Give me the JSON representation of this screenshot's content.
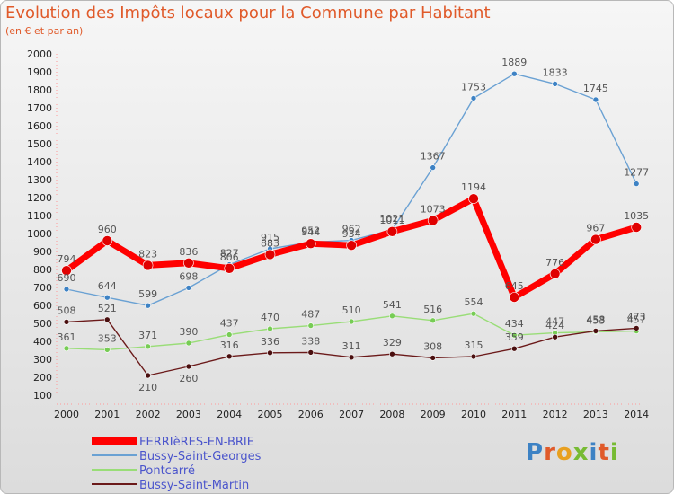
{
  "chart_data": {
    "type": "line",
    "title": "Evolution des Impôts locaux pour la Commune par Habitant",
    "subtitle": "(en € et par an)",
    "x": [
      "2000",
      "2001",
      "2002",
      "2003",
      "2004",
      "2005",
      "2006",
      "2007",
      "2008",
      "2009",
      "2010",
      "2011",
      "2012",
      "2013",
      "2014"
    ],
    "ylim": [
      100,
      2000
    ],
    "yticks": [
      100,
      200,
      300,
      400,
      500,
      600,
      700,
      800,
      900,
      1000,
      1100,
      1200,
      1300,
      1400,
      1500,
      1600,
      1700,
      1800,
      1900,
      2000
    ],
    "grid": false,
    "legend_position": "bottom-left",
    "series": [
      {
        "name": "FERRIèRES-EN-BRIE",
        "color": "#ff0000",
        "values": [
          794,
          960,
          823,
          836,
          806,
          883,
          944,
          934,
          1011,
          1073,
          1194,
          645,
          776,
          967,
          1035
        ]
      },
      {
        "name": "Bussy-Saint-Georges",
        "color": "#6aa1d3",
        "values": [
          690,
          644,
          599,
          698,
          827,
          915,
          952,
          962,
          1021,
          1367,
          1753,
          1889,
          1833,
          1745,
          1277
        ]
      },
      {
        "name": "Pontcarré",
        "color": "#99dd77",
        "values": [
          361,
          353,
          371,
          390,
          437,
          470,
          487,
          510,
          541,
          516,
          554,
          434,
          447,
          453,
          457
        ]
      },
      {
        "name": "Bussy-Saint-Martin",
        "color": "#6b1a1a",
        "values": [
          508,
          521,
          210,
          260,
          316,
          336,
          338,
          311,
          329,
          308,
          315,
          359,
          424,
          458,
          473
        ]
      }
    ]
  },
  "logo": {
    "text": "Proxiti"
  }
}
